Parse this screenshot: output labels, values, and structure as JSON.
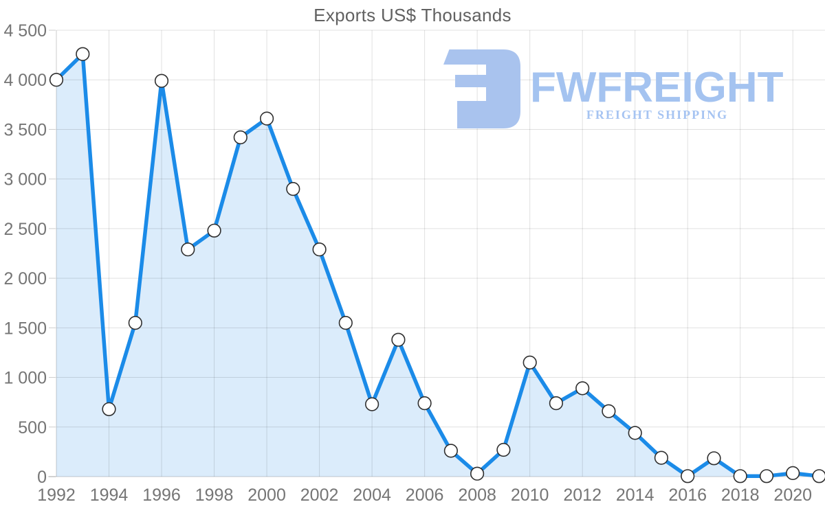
{
  "chart_data": {
    "type": "area",
    "title": "Exports US$ Thousands",
    "xlabel": "",
    "ylabel": "",
    "x": [
      1992,
      1993,
      1994,
      1995,
      1996,
      1997,
      1998,
      1999,
      2000,
      2001,
      2002,
      2003,
      2004,
      2005,
      2006,
      2007,
      2008,
      2009,
      2010,
      2011,
      2012,
      2013,
      2014,
      2015,
      2016,
      2017,
      2018,
      2019,
      2020,
      2021
    ],
    "values": [
      4000,
      4260,
      680,
      1550,
      3990,
      2290,
      2480,
      3420,
      3610,
      2900,
      2290,
      1550,
      730,
      1380,
      740,
      260,
      30,
      270,
      1150,
      740,
      890,
      660,
      440,
      190,
      5,
      185,
      5,
      5,
      35,
      5
    ],
    "ylim": [
      0,
      4500
    ],
    "ytick_step": 500,
    "xtick_step": 2,
    "xtick_first": 1992,
    "xtick_last": 2020,
    "grid": true,
    "legend": false,
    "marker": "circle",
    "number_format": "space-thousands"
  },
  "watermark": {
    "brand": "FWFREIGHT",
    "tagline": "FREIGHT SHIPPING",
    "icon": "fwfreight-reversed-f-mark",
    "color_icon": "#a9c3ee",
    "color_brand": "#a4c3f0",
    "color_tagline": "#a6c4f2"
  },
  "colors": {
    "line": "#1b8be8",
    "area_fill": "rgba(33,139,232,0.16)",
    "grid": "rgba(0,0,0,0.12)",
    "axis": "rgba(0,0,0,0.20)",
    "marker_fill": "#ffffff",
    "marker_stroke": "#2f2f2f",
    "tick_label": "#757575",
    "title": "#616161"
  }
}
